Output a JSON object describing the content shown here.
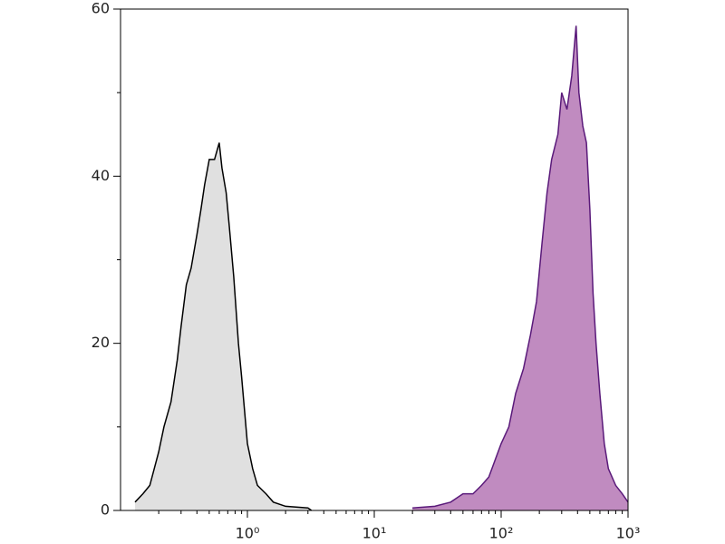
{
  "chart_data": {
    "type": "area",
    "xscale": "log",
    "xlim": [
      0.1,
      1000
    ],
    "ylim": [
      0,
      60
    ],
    "xticks": [
      {
        "value": 1,
        "label": "10⁰"
      },
      {
        "value": 10,
        "label": "10¹"
      },
      {
        "value": 100,
        "label": "10²"
      },
      {
        "value": 1000,
        "label": "10³"
      }
    ],
    "xminorticks": [
      0.2,
      0.3,
      0.4,
      0.5,
      0.6,
      0.7,
      0.8,
      0.9,
      2,
      3,
      4,
      5,
      6,
      7,
      8,
      9,
      20,
      30,
      40,
      50,
      60,
      70,
      80,
      90,
      200,
      300,
      400,
      500,
      600,
      700,
      800,
      900
    ],
    "yticks": [
      0,
      20,
      40,
      60
    ],
    "yminorticks": [
      10,
      30,
      50
    ],
    "series": [
      {
        "color": "#000000",
        "fill": "#e0e0e0",
        "x": [
          0.13,
          0.15,
          0.17,
          0.2,
          0.22,
          0.25,
          0.28,
          0.3,
          0.33,
          0.36,
          0.4,
          0.43,
          0.46,
          0.5,
          0.55,
          0.6,
          0.63,
          0.68,
          0.72,
          0.78,
          0.85,
          0.9,
          1.0,
          1.1,
          1.2,
          1.4,
          1.6,
          2.0,
          3.0,
          3.2
        ],
        "values": [
          1,
          2,
          3,
          7,
          10,
          13,
          18,
          22,
          27,
          29,
          33,
          36,
          39,
          42,
          42,
          44,
          41,
          38,
          34,
          28,
          20,
          16,
          8,
          5,
          3,
          2,
          1,
          0.5,
          0.3,
          0
        ]
      },
      {
        "color": "#5a1a7a",
        "fill": "#c08bc0",
        "x": [
          20,
          30,
          40,
          50,
          60,
          70,
          80,
          100,
          115,
          130,
          150,
          170,
          190,
          210,
          230,
          250,
          280,
          300,
          330,
          360,
          390,
          410,
          440,
          470,
          500,
          530,
          560,
          600,
          650,
          700,
          800,
          900,
          1000
        ],
        "values": [
          0.3,
          0.5,
          1,
          2,
          2,
          3,
          4,
          8,
          10,
          14,
          17,
          21,
          25,
          32,
          38,
          42,
          45,
          50,
          48,
          52,
          58,
          50,
          46,
          44,
          36,
          26,
          20,
          14,
          8,
          5,
          3,
          2,
          1
        ]
      }
    ]
  }
}
